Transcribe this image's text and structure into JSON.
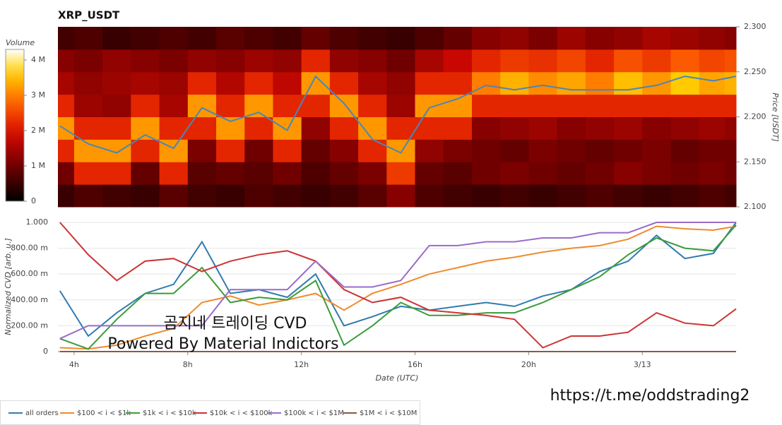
{
  "chart_data": [
    {
      "type": "heatmap",
      "title": "XRP_USDT",
      "x": [
        3.5,
        4.5,
        5.5,
        6.5,
        7.5,
        8.5,
        9.5,
        10.5,
        11.5,
        12.5,
        13.5,
        14.5,
        15.5,
        16.5,
        17.5,
        18.5,
        19.5,
        20.5,
        21.5,
        22.5,
        23.5,
        24.5,
        25.5,
        26.5,
        27.3
      ],
      "xlim": [
        3.43,
        27.3
      ],
      "y_bins": [
        2.1,
        2.125,
        2.15,
        2.175,
        2.2,
        2.225,
        2.25,
        2.275,
        2.3
      ],
      "volumes": [
        [
          500000,
          700000,
          600000,
          500000,
          800000,
          600000,
          500000,
          700000,
          600000,
          500000,
          600000,
          800000,
          1200000,
          700000,
          600000,
          500000,
          600000,
          500000,
          600000,
          700000,
          600000,
          500000,
          600000,
          700000,
          600000
        ],
        [
          1000000,
          2200000,
          2200000,
          900000,
          2200000,
          800000,
          900000,
          800000,
          1000000,
          700000,
          900000,
          1100000,
          2400000,
          900000,
          800000,
          1000000,
          1100000,
          1000000,
          900000,
          1000000,
          1200000,
          1100000,
          1000000,
          1100000,
          1000000
        ],
        [
          2200000,
          3200000,
          3200000,
          2200000,
          3200000,
          1100000,
          2200000,
          1000000,
          2200000,
          900000,
          1200000,
          2200000,
          3200000,
          1300000,
          1100000,
          1000000,
          900000,
          1100000,
          1000000,
          900000,
          1000000,
          1100000,
          900000,
          1000000,
          1000000
        ],
        [
          3200000,
          2200000,
          2200000,
          3200000,
          2200000,
          2200000,
          3200000,
          2200000,
          3200000,
          1300000,
          2200000,
          3200000,
          2200000,
          2200000,
          2200000,
          1200000,
          1300000,
          1400000,
          1200000,
          1300000,
          1400000,
          1200000,
          1300000,
          1400000,
          1300000
        ],
        [
          2200000,
          1400000,
          1300000,
          2200000,
          1500000,
          3200000,
          2200000,
          3200000,
          2200000,
          2200000,
          3200000,
          2200000,
          1400000,
          3200000,
          3200000,
          2200000,
          2200000,
          2200000,
          2200000,
          2200000,
          2200000,
          2200000,
          2200000,
          2200000,
          2200000
        ],
        [
          1500000,
          1300000,
          1400000,
          1500000,
          1400000,
          2200000,
          1600000,
          2200000,
          1700000,
          3200000,
          2200000,
          1500000,
          1300000,
          2200000,
          2200000,
          3000000,
          3400000,
          3100000,
          3300000,
          3000000,
          3500000,
          3200000,
          3600000,
          3300000,
          3400000
        ],
        [
          1200000,
          1100000,
          1300000,
          1200000,
          1100000,
          1300000,
          1200000,
          1400000,
          1300000,
          2200000,
          1300000,
          1200000,
          1000000,
          1500000,
          1800000,
          2200000,
          2400000,
          2300000,
          2500000,
          2200000,
          2600000,
          2400000,
          2700000,
          2500000,
          2600000
        ],
        [
          600000,
          700000,
          500000,
          600000,
          700000,
          600000,
          800000,
          700000,
          600000,
          900000,
          700000,
          600000,
          500000,
          700000,
          900000,
          1200000,
          1300000,
          1100000,
          1400000,
          1200000,
          1300000,
          1500000,
          1400000,
          1300000,
          1200000
        ]
      ],
      "colorbar": {
        "label": "Volume",
        "lim": [
          0,
          4300000
        ],
        "ticks": [
          0,
          {
            "value": 1000000,
            "label": "1 M"
          },
          {
            "value": 2000000,
            "label": "2 M"
          },
          {
            "value": 3000000,
            "label": "3 M"
          },
          {
            "value": 4000000,
            "label": "4 M"
          }
        ]
      },
      "y2label": "Price [USDT]",
      "y2lim": [
        2.1,
        2.3
      ],
      "y2ticks": [
        {
          "value": 2.1,
          "label": "2.100"
        },
        {
          "value": 2.15,
          "label": "2.150"
        },
        {
          "value": 2.2,
          "label": "2.200"
        },
        {
          "value": 2.25,
          "label": "2.250"
        },
        {
          "value": 2.3,
          "label": "2.300"
        }
      ],
      "price": {
        "color": "#4a86b8",
        "values": [
          2.19,
          2.17,
          2.16,
          2.18,
          2.165,
          2.21,
          2.195,
          2.205,
          2.185,
          2.245,
          2.215,
          2.175,
          2.16,
          2.21,
          2.22,
          2.235,
          2.23,
          2.235,
          2.23,
          2.23,
          2.23,
          2.235,
          2.245,
          2.24,
          2.245
        ]
      }
    },
    {
      "type": "line",
      "x": [
        3.5,
        4.5,
        5.5,
        6.5,
        7.5,
        8.5,
        9.5,
        10.5,
        11.5,
        12.5,
        13.5,
        14.5,
        15.5,
        16.5,
        17.5,
        18.5,
        19.5,
        20.5,
        21.5,
        22.5,
        23.5,
        24.5,
        25.5,
        26.5,
        27.3
      ],
      "xlim": [
        3.43,
        27.3
      ],
      "xticks": [
        {
          "value": 4,
          "label": "4h"
        },
        {
          "value": 8,
          "label": "8h"
        },
        {
          "value": 12,
          "label": "12h"
        },
        {
          "value": 16,
          "label": "16h"
        },
        {
          "value": 20,
          "label": "20h"
        },
        {
          "value": 24,
          "label": "3/13"
        }
      ],
      "xlabel": "Date (UTC)",
      "ylabel": "Normalized CVD [arb. u.]",
      "ylim": [
        0,
        1
      ],
      "yticks": [
        0,
        {
          "value": 0.2,
          "label": "200.00 m"
        },
        {
          "value": 0.4,
          "label": "400.00 m"
        },
        {
          "value": 0.6,
          "label": "600.00 m"
        },
        {
          "value": 0.8,
          "label": "800.00 m"
        },
        {
          "value": 1,
          "label": "1.000"
        }
      ],
      "grid": true,
      "legend": "bottom left",
      "series": [
        {
          "name": "all orders",
          "color": "#2f7bb0",
          "values": [
            0.47,
            0.12,
            0.3,
            0.45,
            0.52,
            0.85,
            0.45,
            0.48,
            0.42,
            0.6,
            0.2,
            0.27,
            0.35,
            0.32,
            0.35,
            0.38,
            0.35,
            0.43,
            0.48,
            0.62,
            0.7,
            0.9,
            0.72,
            0.76,
            1.0
          ]
        },
        {
          "name": "$100 < i < $1k",
          "color": "#f08a2c",
          "values": [
            0.03,
            0.02,
            0.05,
            0.12,
            0.18,
            0.38,
            0.43,
            0.36,
            0.4,
            0.45,
            0.32,
            0.45,
            0.52,
            0.6,
            0.65,
            0.7,
            0.73,
            0.77,
            0.8,
            0.82,
            0.87,
            0.97,
            0.95,
            0.94,
            0.97
          ]
        },
        {
          "name": "$1k < i < $10k",
          "color": "#3a9c3a",
          "values": [
            0.1,
            0.02,
            0.25,
            0.45,
            0.45,
            0.65,
            0.38,
            0.42,
            0.4,
            0.55,
            0.05,
            0.2,
            0.38,
            0.28,
            0.28,
            0.3,
            0.3,
            0.38,
            0.48,
            0.58,
            0.75,
            0.88,
            0.8,
            0.78,
            0.98
          ]
        },
        {
          "name": "$10k < i < $100k",
          "color": "#cc3333",
          "values": [
            1.0,
            0.75,
            0.55,
            0.7,
            0.72,
            0.62,
            0.7,
            0.75,
            0.78,
            0.7,
            0.48,
            0.38,
            0.42,
            0.32,
            0.3,
            0.28,
            0.25,
            0.03,
            0.12,
            0.12,
            0.15,
            0.3,
            0.22,
            0.2,
            0.33
          ]
        },
        {
          "name": "$100k < i < $1M",
          "color": "#9a6cc8",
          "values": [
            0.1,
            0.2,
            0.2,
            0.2,
            0.2,
            0.2,
            0.48,
            0.48,
            0.48,
            0.7,
            0.5,
            0.5,
            0.55,
            0.82,
            0.82,
            0.85,
            0.85,
            0.88,
            0.88,
            0.92,
            0.92,
            1.0,
            1.0,
            1.0,
            1.0
          ]
        },
        {
          "name": "$1M < i < $10M",
          "color": "#8c564b",
          "values": [
            0,
            0,
            0,
            0,
            0,
            0,
            0,
            0,
            0,
            0,
            0,
            0,
            0,
            0,
            0,
            0,
            0,
            0,
            0,
            0,
            0,
            0,
            0,
            0,
            0
          ]
        }
      ]
    }
  ],
  "watermark": {
    "line1": "곰지네 트레이딩 CVD",
    "line2": "Powered By Material Indictors",
    "link": "https://t.me/oddstrading2"
  }
}
